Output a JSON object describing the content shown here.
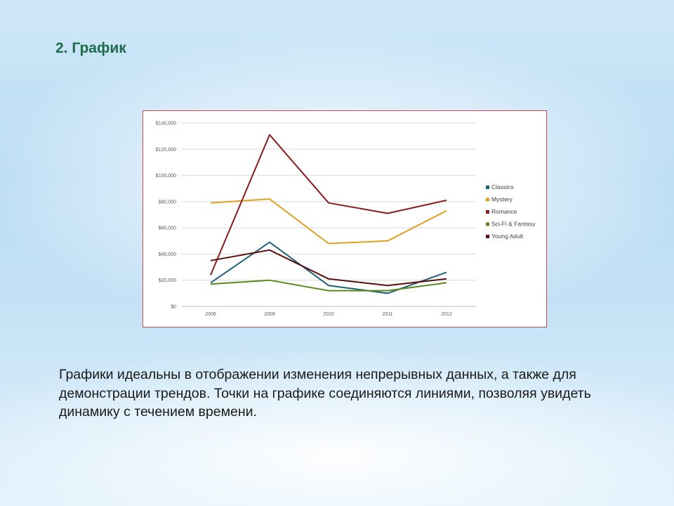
{
  "slide": {
    "title": "2. График",
    "body": "Графики идеальны в отображении изменения непрерывных данных, а также для демонстрации трендов. Точки на графике соединяются линиями, позволяя увидеть динамику с течением времени."
  },
  "colors": {
    "title": "#1e6a4a",
    "frame_border": "#c0504d"
  },
  "chart_data": {
    "type": "line",
    "categories": [
      "2008",
      "2009",
      "2010",
      "2011",
      "2012"
    ],
    "y_ticks": [
      "$0",
      "$20,000",
      "$40,000",
      "$60,000",
      "$80,000",
      "$100,000",
      "$120,000",
      "$140,000"
    ],
    "ylim": [
      0,
      140000
    ],
    "grid": true,
    "legend_position": "right",
    "series": [
      {
        "name": "Classics",
        "color": "#1f5f7a",
        "values": [
          18000,
          49000,
          16000,
          10000,
          26000
        ]
      },
      {
        "name": "Mystery",
        "color": "#e0a020",
        "values": [
          79000,
          82000,
          48000,
          50000,
          73000
        ]
      },
      {
        "name": "Romance",
        "color": "#8b1a1a",
        "values": [
          24000,
          131000,
          79000,
          71000,
          81000
        ]
      },
      {
        "name": "Sci-Fi & Fantasy",
        "color": "#5a8a1e",
        "values": [
          17000,
          20000,
          12000,
          12000,
          18000
        ]
      },
      {
        "name": "Young Adult",
        "color": "#5a0f0f",
        "values": [
          35000,
          43000,
          21000,
          16000,
          21000
        ]
      }
    ]
  }
}
